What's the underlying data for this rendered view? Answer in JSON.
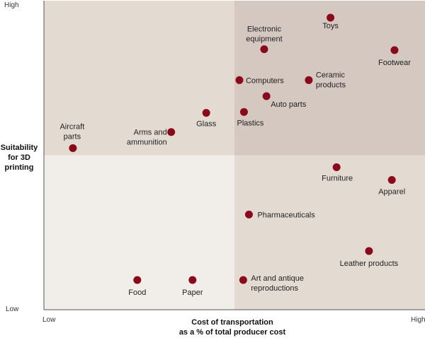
{
  "chart_data": {
    "type": "scatter",
    "title": "",
    "xlabel": [
      "Cost of transportation",
      "as a % of total producer cost"
    ],
    "ylabel": [
      "Suitability",
      "for 3D",
      "printing"
    ],
    "x_ticks": {
      "low": "Low",
      "high": "High"
    },
    "y_ticks": {
      "low": "Low",
      "high": "High"
    },
    "xlim": [
      0,
      100
    ],
    "ylim": [
      0,
      100
    ],
    "grid": false,
    "quadrant_split": {
      "x": 50,
      "y": 50
    },
    "colors": {
      "point": "#8a0a1c",
      "top_left": "#e3dad2",
      "top_right": "#d4c8c1",
      "bottom_left": "#f1ede8",
      "bottom_right": "#e3dad2"
    },
    "points": [
      {
        "name": [
          "Toys"
        ],
        "x": 75.2,
        "y": 94.5
      },
      {
        "name": [
          "Electronic",
          "equipment"
        ],
        "x": 57.8,
        "y": 84.3
      },
      {
        "name": [
          "Footwear"
        ],
        "x": 92.0,
        "y": 84.0
      },
      {
        "name": [
          "Computers"
        ],
        "x": 51.3,
        "y": 74.3
      },
      {
        "name": [
          "Ceramic",
          "products"
        ],
        "x": 69.5,
        "y": 74.3
      },
      {
        "name": [
          "Auto parts"
        ],
        "x": 58.4,
        "y": 69.1
      },
      {
        "name": [
          "Glass"
        ],
        "x": 42.6,
        "y": 63.7
      },
      {
        "name": [
          "Plastics"
        ],
        "x": 52.5,
        "y": 64.0
      },
      {
        "name": [
          "Aircraft",
          "parts"
        ],
        "x": 7.6,
        "y": 52.3
      },
      {
        "name": [
          "Arms and",
          "ammunition"
        ],
        "x": 33.4,
        "y": 57.5
      },
      {
        "name": [
          "Furniture"
        ],
        "x": 76.8,
        "y": 46.1
      },
      {
        "name": [
          "Apparel"
        ],
        "x": 91.3,
        "y": 42.0
      },
      {
        "name": [
          "Pharmaceuticals"
        ],
        "x": 53.8,
        "y": 30.8
      },
      {
        "name": [
          "Leather products"
        ],
        "x": 85.3,
        "y": 19.0
      },
      {
        "name": [
          "Food"
        ],
        "x": 24.5,
        "y": 9.6
      },
      {
        "name": [
          "Paper"
        ],
        "x": 39.0,
        "y": 9.6
      },
      {
        "name": [
          "Art and antique",
          "reproductions"
        ],
        "x": 52.3,
        "y": 9.6
      }
    ]
  }
}
